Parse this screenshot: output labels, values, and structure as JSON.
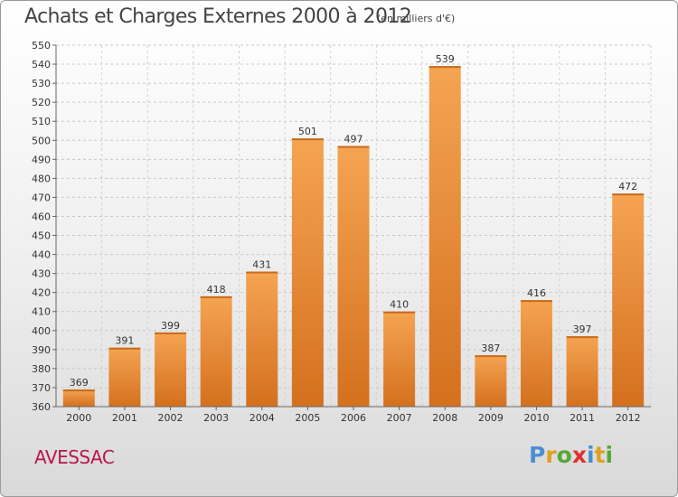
{
  "chart_data": {
    "type": "bar",
    "title": "Achats et Charges Externes 2000 à 2012",
    "subtitle": "(en milliers d'€)",
    "categories": [
      "2000",
      "2001",
      "2002",
      "2003",
      "2004",
      "2005",
      "2006",
      "2007",
      "2008",
      "2009",
      "2010",
      "2011",
      "2012"
    ],
    "values": [
      369,
      391,
      399,
      418,
      431,
      501,
      497,
      410,
      539,
      387,
      416,
      397,
      472
    ],
    "ylim": [
      360,
      550
    ],
    "ytick_step": 10,
    "grid": true,
    "bar_color": "#f0a050",
    "bar_color_dark": "#d26f1f"
  },
  "footer": {
    "city": "AVESSAC",
    "logo_letters": [
      {
        "ch": "P",
        "color": "#4a8fd0"
      },
      {
        "ch": "r",
        "color": "#e0a020"
      },
      {
        "ch": "o",
        "color": "#56a838"
      },
      {
        "ch": "x",
        "color": "#e03030"
      },
      {
        "ch": "i",
        "color": "#4a8fd0"
      },
      {
        "ch": "t",
        "color": "#e0a020"
      },
      {
        "ch": "i",
        "color": "#56a838"
      }
    ]
  }
}
